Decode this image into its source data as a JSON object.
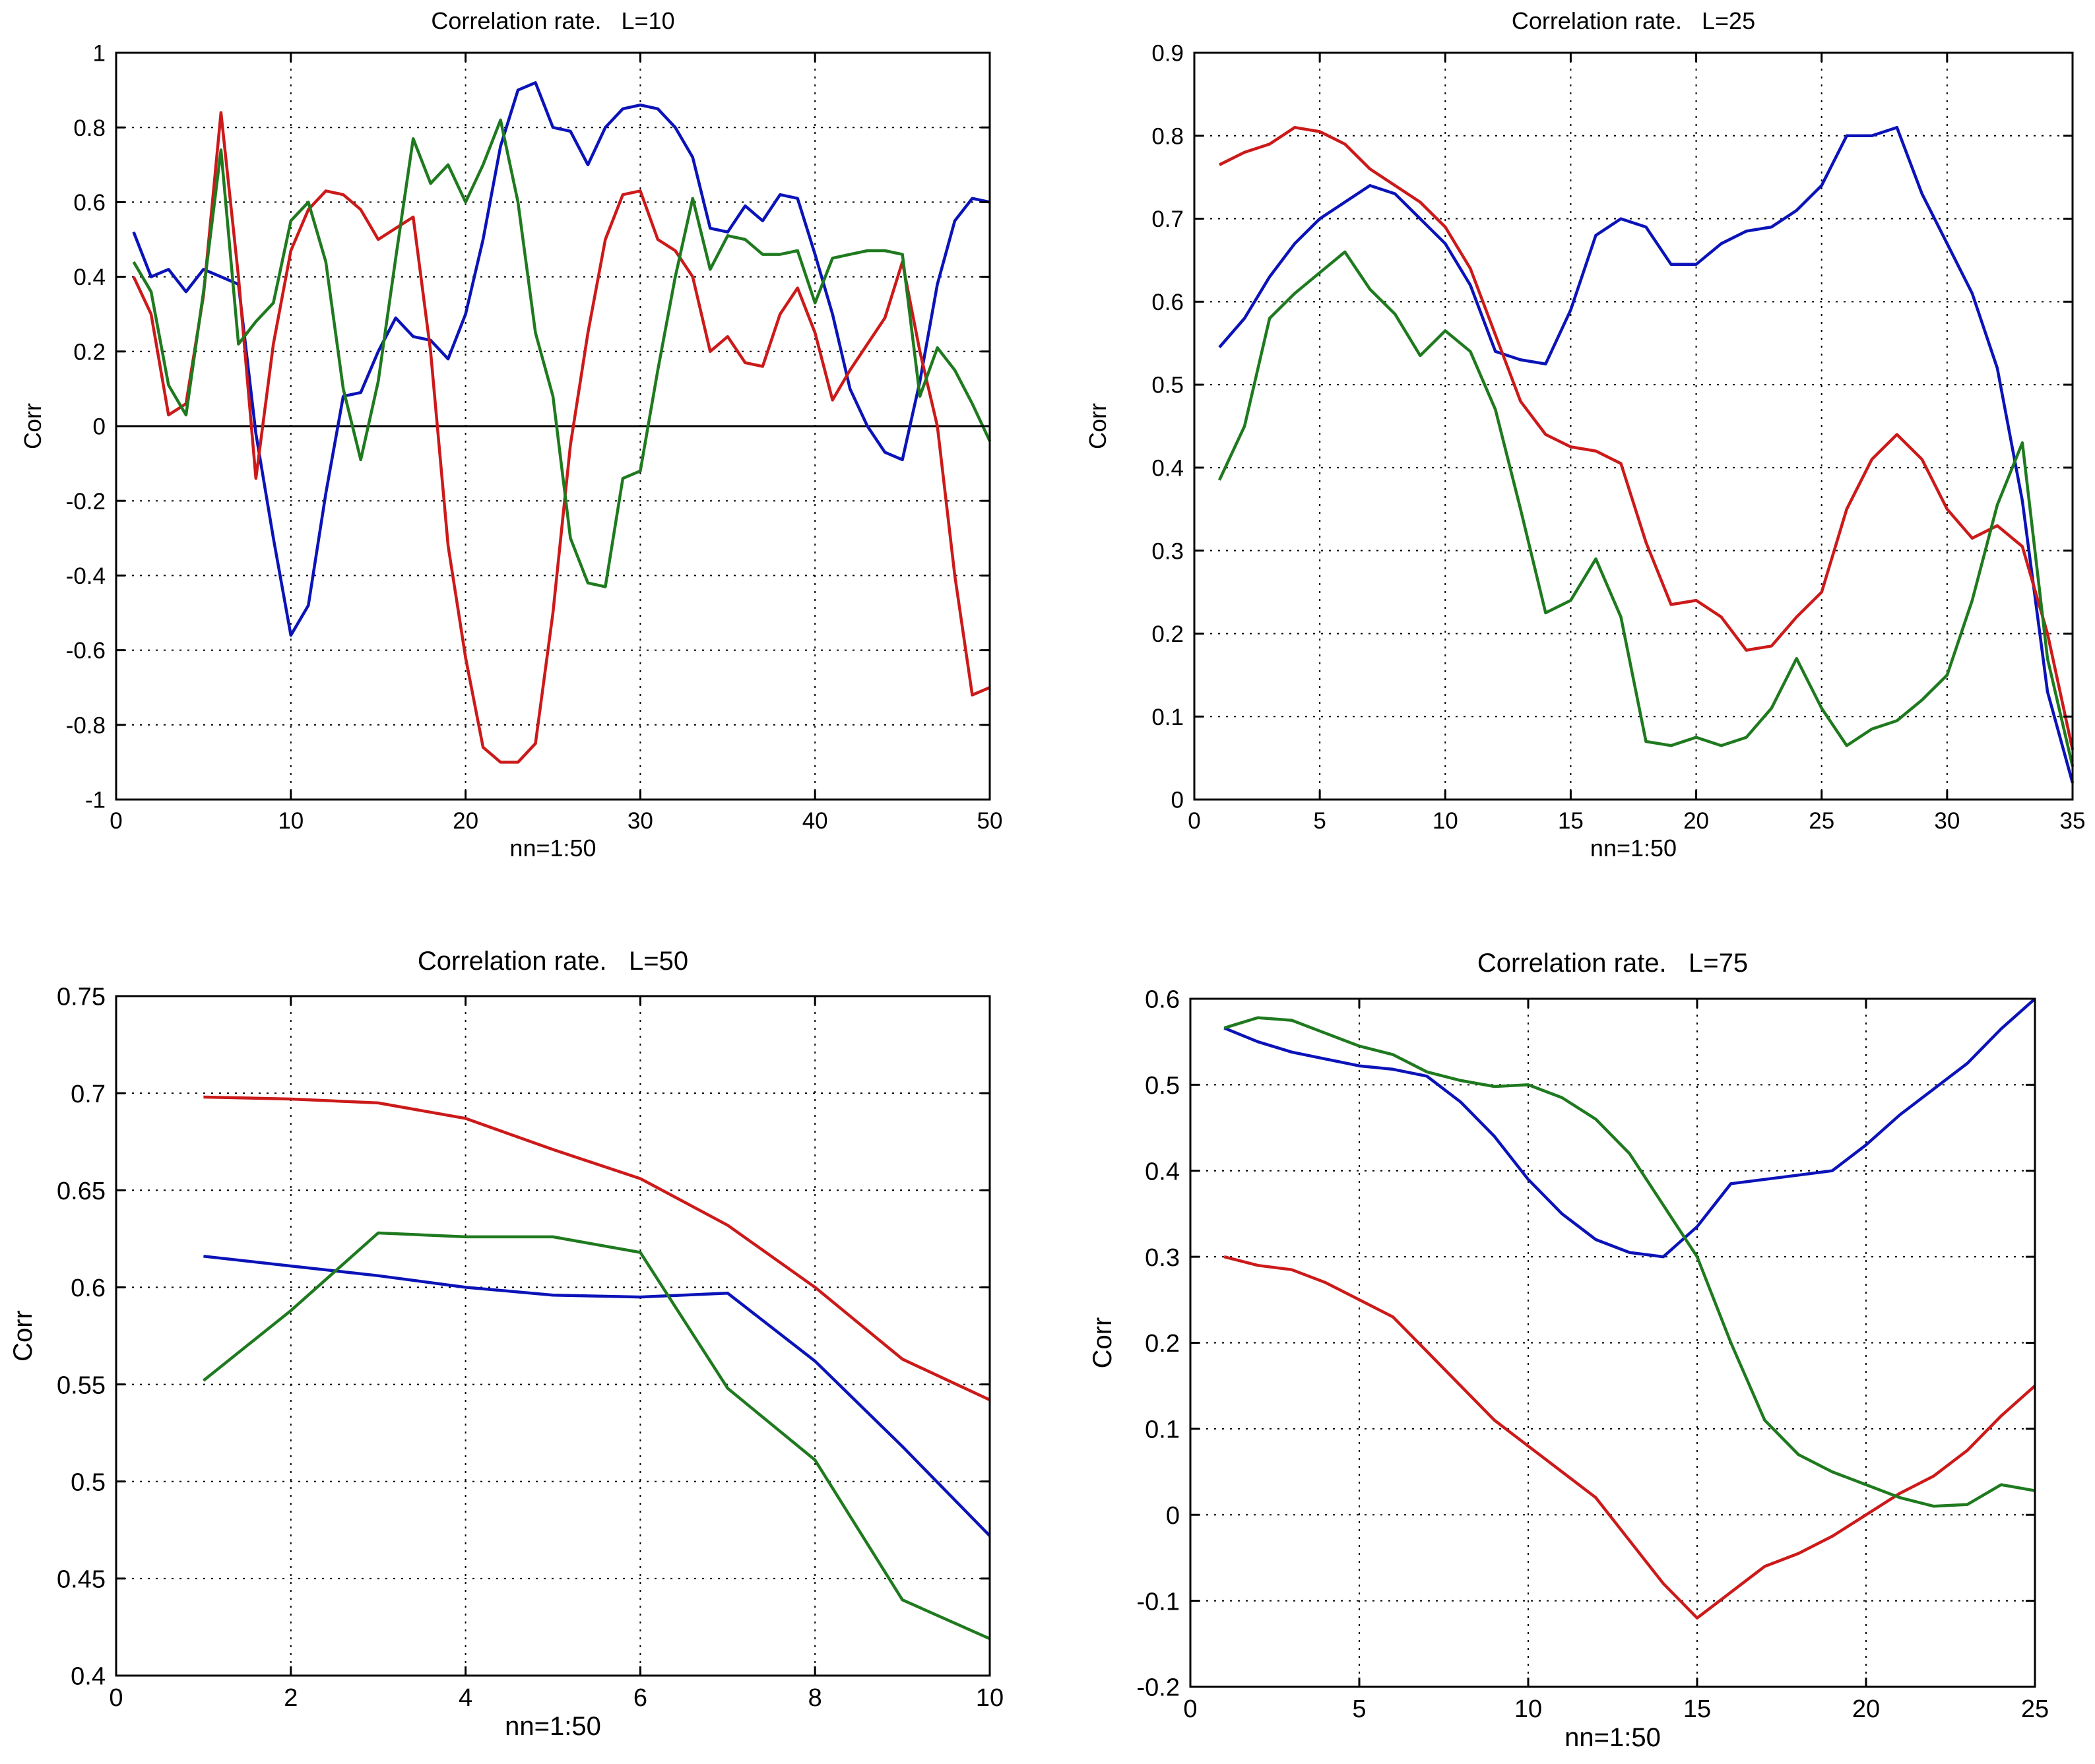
{
  "colors": {
    "series_1": "#0b13b8",
    "series_2": "#cc1a1a",
    "series_3": "#1f7a1f",
    "axis": "#000000",
    "grid": "#000000",
    "background": "#ffffff"
  },
  "chart_data": [
    {
      "type": "line",
      "title": "Correlation rate.   L=10",
      "xlabel": "nn=1:50",
      "ylabel": "Corr",
      "xlim": [
        0,
        50
      ],
      "ylim": [
        -1,
        1
      ],
      "xticks": [
        0,
        10,
        20,
        30,
        40,
        50
      ],
      "yticks": [
        -1,
        -0.8,
        -0.6,
        -0.4,
        -0.2,
        0,
        0.2,
        0.4,
        0.6,
        0.8,
        1
      ],
      "grid": true,
      "zero_line": true,
      "series": [
        {
          "name": "blue",
          "color": "#0b13b8",
          "x": [
            1,
            2,
            3,
            4,
            5,
            6,
            7,
            8,
            9,
            10,
            11,
            12,
            13,
            14,
            15,
            16,
            17,
            18,
            19,
            20,
            21,
            22,
            23,
            24,
            25,
            26,
            27,
            28,
            29,
            30,
            31,
            32,
            33,
            34,
            35,
            36,
            37,
            38,
            39,
            40,
            41,
            42,
            43,
            44,
            45,
            46,
            47,
            48,
            49,
            50
          ],
          "y": [
            0.52,
            0.4,
            0.42,
            0.36,
            0.42,
            0.4,
            0.38,
            -0.02,
            -0.3,
            -0.56,
            -0.48,
            -0.18,
            0.08,
            0.09,
            0.2,
            0.29,
            0.24,
            0.23,
            0.18,
            0.3,
            0.5,
            0.75,
            0.9,
            0.92,
            0.8,
            0.79,
            0.7,
            0.8,
            0.85,
            0.86,
            0.85,
            0.8,
            0.72,
            0.53,
            0.52,
            0.59,
            0.55,
            0.62,
            0.61,
            0.46,
            0.3,
            0.1,
            0.0,
            -0.07,
            -0.09,
            0.12,
            0.38,
            0.55,
            0.61,
            0.6
          ]
        },
        {
          "name": "red",
          "color": "#cc1a1a",
          "x": [
            1,
            2,
            3,
            4,
            5,
            6,
            7,
            8,
            9,
            10,
            11,
            12,
            13,
            14,
            15,
            16,
            17,
            18,
            19,
            20,
            21,
            22,
            23,
            24,
            25,
            26,
            27,
            28,
            29,
            30,
            31,
            32,
            33,
            34,
            35,
            36,
            37,
            38,
            39,
            40,
            41,
            42,
            43,
            44,
            45,
            46,
            47,
            48,
            49,
            50
          ],
          "y": [
            0.4,
            0.3,
            0.03,
            0.06,
            0.35,
            0.84,
            0.4,
            -0.14,
            0.22,
            0.47,
            0.58,
            0.63,
            0.62,
            0.58,
            0.5,
            0.53,
            0.56,
            0.2,
            -0.32,
            -0.62,
            -0.86,
            -0.9,
            -0.9,
            -0.85,
            -0.5,
            -0.05,
            0.25,
            0.5,
            0.62,
            0.63,
            0.5,
            0.47,
            0.4,
            0.2,
            0.24,
            0.17,
            0.16,
            0.3,
            0.37,
            0.25,
            0.07,
            0.15,
            0.22,
            0.29,
            0.44,
            0.2,
            0.0,
            -0.4,
            -0.72,
            -0.7
          ]
        },
        {
          "name": "green",
          "color": "#1f7a1f",
          "x": [
            1,
            2,
            3,
            4,
            5,
            6,
            7,
            8,
            9,
            10,
            11,
            12,
            13,
            14,
            15,
            16,
            17,
            18,
            19,
            20,
            21,
            22,
            23,
            24,
            25,
            26,
            27,
            28,
            29,
            30,
            31,
            32,
            33,
            34,
            35,
            36,
            37,
            38,
            39,
            40,
            41,
            42,
            43,
            44,
            45,
            46,
            47,
            48,
            49,
            50
          ],
          "y": [
            0.44,
            0.36,
            0.11,
            0.03,
            0.36,
            0.74,
            0.22,
            0.28,
            0.33,
            0.55,
            0.6,
            0.44,
            0.1,
            -0.09,
            0.12,
            0.45,
            0.77,
            0.65,
            0.7,
            0.6,
            0.7,
            0.82,
            0.6,
            0.25,
            0.08,
            -0.3,
            -0.42,
            -0.43,
            -0.14,
            -0.12,
            0.15,
            0.4,
            0.61,
            0.42,
            0.51,
            0.5,
            0.46,
            0.46,
            0.47,
            0.33,
            0.45,
            0.46,
            0.47,
            0.47,
            0.46,
            0.08,
            0.21,
            0.15,
            0.06,
            -0.04
          ]
        }
      ]
    },
    {
      "type": "line",
      "title": "Correlation rate.   L=25",
      "xlabel": "nn=1:50",
      "ylabel": "Corr",
      "xlim": [
        0,
        35
      ],
      "ylim": [
        0,
        0.9
      ],
      "xticks": [
        0,
        5,
        10,
        15,
        20,
        25,
        30,
        35
      ],
      "yticks": [
        0,
        0.1,
        0.2,
        0.3,
        0.4,
        0.5,
        0.6,
        0.7,
        0.8,
        0.9
      ],
      "grid": true,
      "zero_line": false,
      "series": [
        {
          "name": "blue",
          "color": "#0b13b8",
          "x": [
            1,
            2,
            3,
            4,
            5,
            6,
            7,
            8,
            9,
            10,
            11,
            12,
            13,
            14,
            15,
            16,
            17,
            18,
            19,
            20,
            21,
            22,
            23,
            24,
            25,
            26,
            27,
            28,
            29,
            30,
            31,
            32,
            33,
            34,
            35
          ],
          "y": [
            0.545,
            0.58,
            0.63,
            0.67,
            0.7,
            0.72,
            0.74,
            0.73,
            0.7,
            0.67,
            0.62,
            0.54,
            0.53,
            0.525,
            0.59,
            0.68,
            0.7,
            0.69,
            0.645,
            0.645,
            0.67,
            0.685,
            0.69,
            0.71,
            0.74,
            0.8,
            0.8,
            0.81,
            0.73,
            0.67,
            0.61,
            0.52,
            0.36,
            0.13,
            0.02
          ]
        },
        {
          "name": "red",
          "color": "#cc1a1a",
          "x": [
            1,
            2,
            3,
            4,
            5,
            6,
            7,
            8,
            9,
            10,
            11,
            12,
            13,
            14,
            15,
            16,
            17,
            18,
            19,
            20,
            21,
            22,
            23,
            24,
            25,
            26,
            27,
            28,
            29,
            30,
            31,
            32,
            33,
            34,
            35
          ],
          "y": [
            0.765,
            0.78,
            0.79,
            0.81,
            0.805,
            0.79,
            0.76,
            0.74,
            0.72,
            0.69,
            0.64,
            0.56,
            0.48,
            0.44,
            0.425,
            0.42,
            0.405,
            0.31,
            0.235,
            0.24,
            0.22,
            0.18,
            0.185,
            0.22,
            0.25,
            0.35,
            0.41,
            0.44,
            0.41,
            0.35,
            0.315,
            0.33,
            0.305,
            0.2,
            0.06
          ]
        },
        {
          "name": "green",
          "color": "#1f7a1f",
          "x": [
            1,
            2,
            3,
            4,
            5,
            6,
            7,
            8,
            9,
            10,
            11,
            12,
            13,
            14,
            15,
            16,
            17,
            18,
            19,
            20,
            21,
            22,
            23,
            24,
            25,
            26,
            27,
            28,
            29,
            30,
            31,
            32,
            33,
            34,
            35
          ],
          "y": [
            0.385,
            0.45,
            0.58,
            0.61,
            0.635,
            0.66,
            0.615,
            0.585,
            0.535,
            0.565,
            0.54,
            0.47,
            0.35,
            0.225,
            0.24,
            0.29,
            0.22,
            0.07,
            0.065,
            0.075,
            0.065,
            0.075,
            0.11,
            0.17,
            0.11,
            0.065,
            0.085,
            0.095,
            0.12,
            0.15,
            0.24,
            0.355,
            0.43,
            0.17,
            0.04
          ]
        }
      ]
    },
    {
      "type": "line",
      "title": "Correlation rate.   L=50",
      "xlabel": "nn=1:50",
      "ylabel": "Corr",
      "xlim": [
        0,
        10
      ],
      "ylim": [
        0.4,
        0.75
      ],
      "xticks": [
        0,
        2,
        4,
        6,
        8,
        10
      ],
      "yticks": [
        0.4,
        0.45,
        0.5,
        0.55,
        0.6,
        0.65,
        0.7,
        0.75
      ],
      "grid": true,
      "zero_line": false,
      "series": [
        {
          "name": "red",
          "color": "#cc1a1a",
          "x": [
            1,
            2,
            3,
            4,
            5,
            6,
            7,
            8,
            9,
            10
          ],
          "y": [
            0.698,
            0.697,
            0.695,
            0.687,
            0.671,
            0.656,
            0.632,
            0.6,
            0.563,
            0.542
          ]
        },
        {
          "name": "blue",
          "color": "#0b13b8",
          "x": [
            1,
            2,
            3,
            4,
            5,
            6,
            7,
            8,
            9,
            10
          ],
          "y": [
            0.616,
            0.611,
            0.606,
            0.6,
            0.596,
            0.595,
            0.597,
            0.562,
            0.518,
            0.472
          ]
        },
        {
          "name": "green",
          "color": "#1f7a1f",
          "x": [
            1,
            2,
            3,
            4,
            5,
            6,
            7,
            8,
            9,
            10
          ],
          "y": [
            0.552,
            0.588,
            0.628,
            0.626,
            0.626,
            0.618,
            0.548,
            0.511,
            0.439,
            0.419
          ]
        }
      ]
    },
    {
      "type": "line",
      "title": "Correlation rate.   L=75",
      "xlabel": "nn=1:50",
      "ylabel": "Corr",
      "xlim": [
        0,
        25
      ],
      "ylim": [
        -0.2,
        0.6
      ],
      "xticks": [
        0,
        5,
        10,
        15,
        20,
        25
      ],
      "yticks": [
        -0.2,
        -0.1,
        0,
        0.1,
        0.2,
        0.3,
        0.4,
        0.5,
        0.6
      ],
      "grid": true,
      "zero_line": false,
      "series": [
        {
          "name": "blue",
          "color": "#0b13b8",
          "x": [
            1,
            2,
            3,
            4,
            5,
            6,
            7,
            8,
            9,
            10,
            11,
            12,
            13,
            14,
            15,
            16,
            17,
            18,
            19,
            20,
            21,
            22,
            23,
            24,
            25
          ],
          "y": [
            0.566,
            0.55,
            0.538,
            0.53,
            0.522,
            0.518,
            0.51,
            0.48,
            0.44,
            0.39,
            0.35,
            0.32,
            0.305,
            0.3,
            0.335,
            0.385,
            0.39,
            0.395,
            0.4,
            0.43,
            0.465,
            0.495,
            0.525,
            0.565,
            0.6
          ]
        },
        {
          "name": "red",
          "color": "#cc1a1a",
          "x": [
            1,
            2,
            3,
            4,
            5,
            6,
            7,
            8,
            9,
            10,
            11,
            12,
            13,
            14,
            15,
            16,
            17,
            18,
            19,
            20,
            21,
            22,
            23,
            24,
            25
          ],
          "y": [
            0.3,
            0.29,
            0.285,
            0.27,
            0.25,
            0.23,
            0.19,
            0.15,
            0.11,
            0.08,
            0.05,
            0.02,
            -0.03,
            -0.08,
            -0.12,
            -0.09,
            -0.06,
            -0.045,
            -0.025,
            0.0,
            0.025,
            0.045,
            0.075,
            0.115,
            0.15
          ]
        },
        {
          "name": "green",
          "color": "#1f7a1f",
          "x": [
            1,
            2,
            3,
            4,
            5,
            6,
            7,
            8,
            9,
            10,
            11,
            12,
            13,
            14,
            15,
            16,
            17,
            18,
            19,
            20,
            21,
            22,
            23,
            24,
            25
          ],
          "y": [
            0.566,
            0.578,
            0.575,
            0.56,
            0.545,
            0.535,
            0.515,
            0.505,
            0.498,
            0.5,
            0.485,
            0.46,
            0.42,
            0.36,
            0.3,
            0.2,
            0.11,
            0.07,
            0.05,
            0.035,
            0.02,
            0.01,
            0.012,
            0.035,
            0.028
          ]
        }
      ]
    }
  ]
}
